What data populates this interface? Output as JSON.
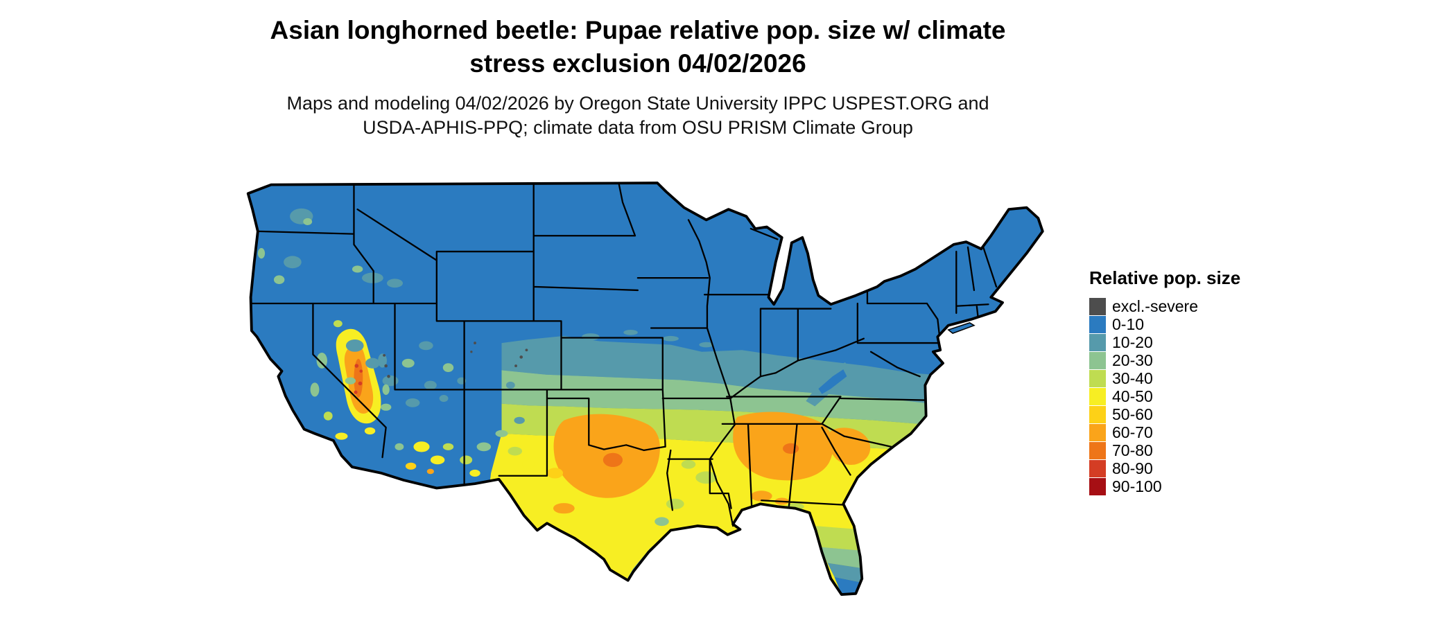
{
  "header": {
    "title_line1": "Asian longhorned beetle: Pupae relative pop. size w/ climate",
    "title_line2": "stress exclusion 04/02/2026",
    "subtitle_line1": "Maps and modeling 04/02/2026 by Oregon State University IPPC USPEST.ORG and",
    "subtitle_line2": "USDA-APHIS-PPQ; climate data from OSU PRISM Climate Group"
  },
  "legend": {
    "title": "Relative pop. size",
    "items": [
      {
        "label": "excl.-severe",
        "color": "#4d4d4d"
      },
      {
        "label": "0-10",
        "color": "#2b7bc0"
      },
      {
        "label": "10-20",
        "color": "#569aab"
      },
      {
        "label": "20-30",
        "color": "#8dc491"
      },
      {
        "label": "30-40",
        "color": "#bfdc51"
      },
      {
        "label": "40-50",
        "color": "#f7ee23"
      },
      {
        "label": "50-60",
        "color": "#fdd117"
      },
      {
        "label": "60-70",
        "color": "#faa41a"
      },
      {
        "label": "70-80",
        "color": "#ee7518"
      },
      {
        "label": "80-90",
        "color": "#d43d24"
      },
      {
        "label": "90-100",
        "color": "#a60f14"
      }
    ]
  }
}
